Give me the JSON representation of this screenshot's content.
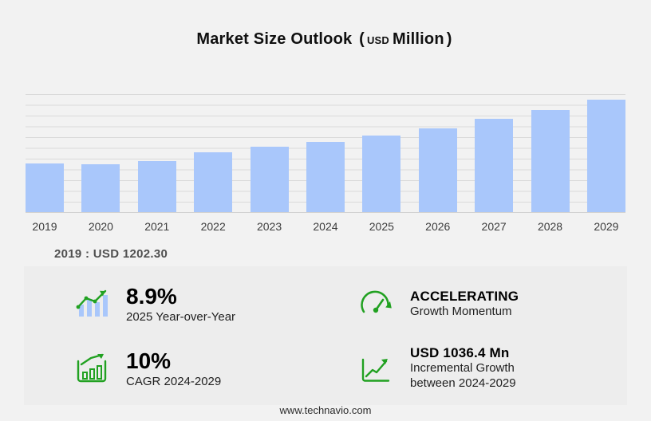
{
  "title": {
    "main": "Market Size Outlook",
    "paren_open": "(",
    "unit_small": "USD",
    "unit_big": "Million",
    "paren_close": ")"
  },
  "chart_data": {
    "type": "bar",
    "title": "Market Size Outlook (USD Million)",
    "categories": [
      "2019",
      "2020",
      "2021",
      "2022",
      "2023",
      "2024",
      "2025",
      "2026",
      "2027",
      "2028",
      "2029"
    ],
    "values": [
      1202.3,
      1185,
      1260,
      1465,
      1605,
      1735,
      1890,
      2060,
      2285,
      2510,
      2771
    ],
    "values_estimated": true,
    "known_values": {
      "2019": 1202.3
    },
    "xlabel": "",
    "ylabel": "",
    "ylim": [
      0,
      2900
    ],
    "gridlines": true,
    "legend": false,
    "bar_color": "#a9c7fb"
  },
  "baseline_label": "2019 : USD  1202.30",
  "stats": [
    {
      "id": "yoy",
      "icon": "growth-bars-icon",
      "value": "8.9%",
      "label": "2025 Year-over-Year"
    },
    {
      "id": "momentum",
      "icon": "speedometer-icon",
      "value": "ACCELERATING",
      "label": "Growth Momentum"
    },
    {
      "id": "cagr",
      "icon": "cagr-chart-icon",
      "value": "10%",
      "label": "CAGR 2024-2029"
    },
    {
      "id": "incremental",
      "icon": "breakout-chart-icon",
      "value": "USD 1036.4 Mn",
      "label_line1": "Incremental Growth",
      "label_line2": "between 2024-2029"
    }
  ],
  "footer": {
    "url": "www.technavio.com"
  },
  "colors": {
    "background": "#f2f2f2",
    "panel": "#ededed",
    "bar": "#a9c7fb",
    "accent_green": "#21a121",
    "gridline": "#dadada"
  }
}
